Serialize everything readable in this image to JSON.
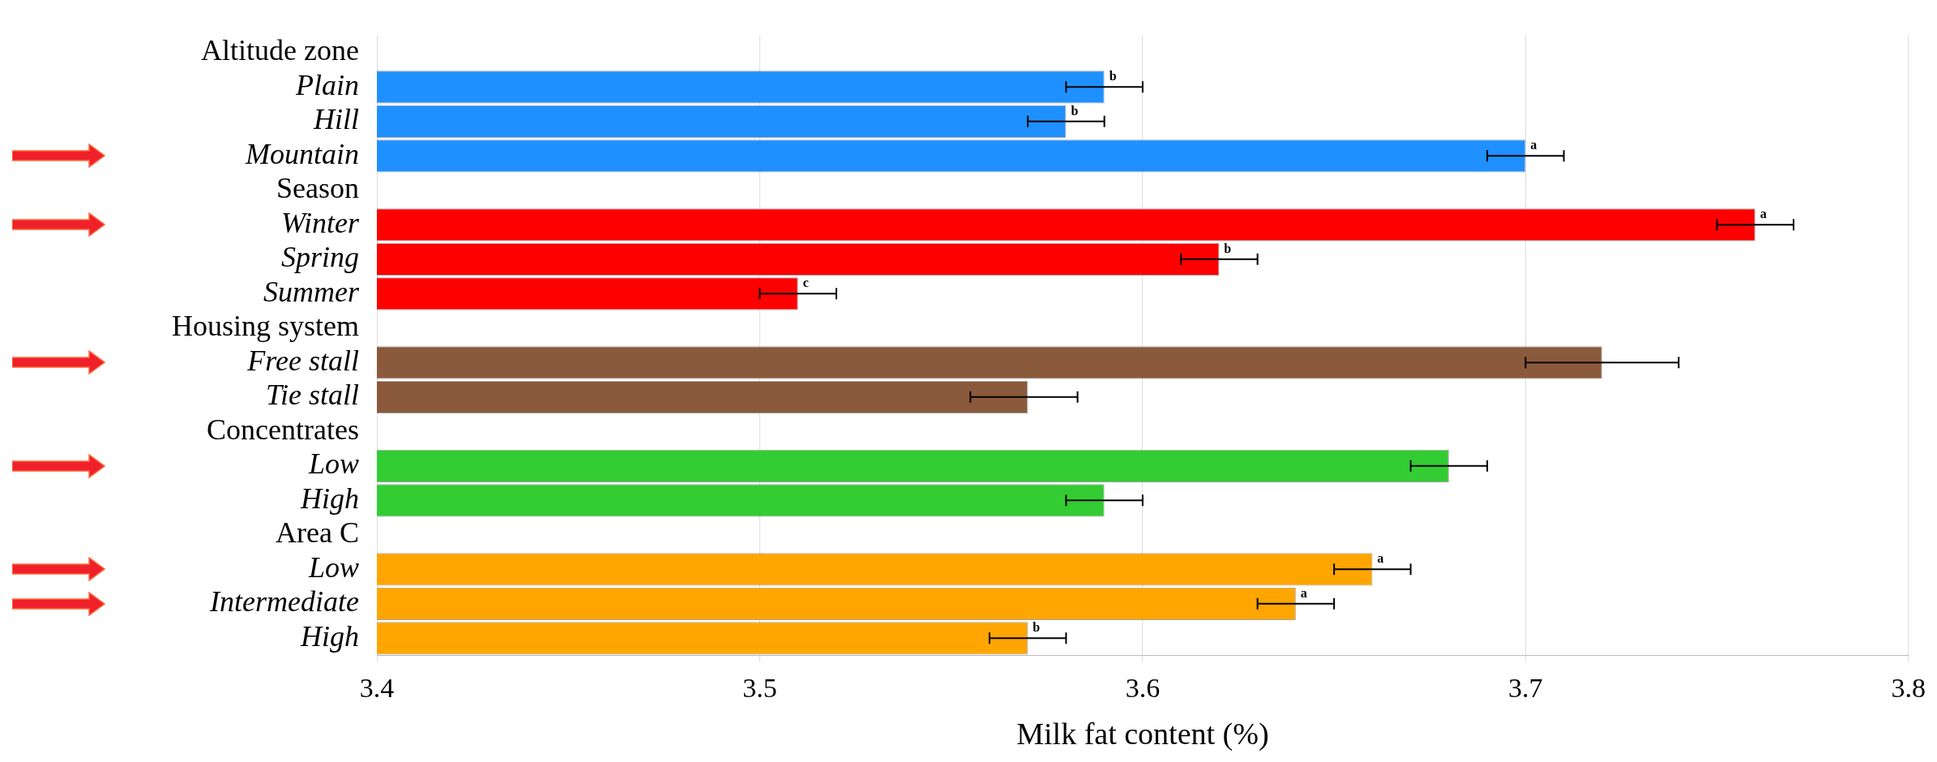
{
  "chart_data": {
    "type": "bar",
    "orientation": "horizontal",
    "xlabel": "Milk fat content (%)",
    "categories": [
      "Altitude zone",
      "Plain",
      "Hill",
      "Mountain",
      "Season",
      "Winter",
      "Spring",
      "Summer",
      "Housing system",
      "Free stall",
      "Tie stall",
      "Concentrates",
      "Low",
      "High",
      "Area C",
      "Low",
      "Intermediate",
      "High"
    ],
    "values": [
      null,
      3.59,
      3.58,
      3.7,
      null,
      3.76,
      3.62,
      3.51,
      null,
      3.72,
      3.57,
      null,
      3.68,
      3.59,
      null,
      3.66,
      3.64,
      3.57
    ],
    "colors": [
      "#1e90ff",
      "#1e90ff",
      "#1e90ff",
      "#1e90ff",
      "#ff0000",
      "#ff0000",
      "#ff0000",
      "#ff0000",
      "#8b5a3c",
      "#8b5a3c",
      "#8b5a3c",
      "#33cc33",
      "#33cc33",
      "#33cc33",
      "#ffa500",
      "#ffa500",
      "#ffa500",
      "#ffa500"
    ],
    "errors": [
      null,
      0.01,
      0.01,
      0.01,
      null,
      0.01,
      0.01,
      0.01,
      null,
      [
        3.7,
        3.74
      ],
      [
        3.555,
        3.583
      ],
      null,
      0.01,
      0.01,
      null,
      0.01,
      0.01,
      0.01
    ],
    "value_labels": [
      null,
      "b",
      "b",
      "a",
      null,
      "a",
      "b",
      "c",
      null,
      null,
      null,
      null,
      null,
      null,
      null,
      "a",
      "a",
      "b"
    ],
    "xlim": [
      3.4,
      3.8
    ],
    "xticks": [
      3.4,
      3.5,
      3.6,
      3.7,
      3.8
    ],
    "grid": "x",
    "legend": false
  }
}
